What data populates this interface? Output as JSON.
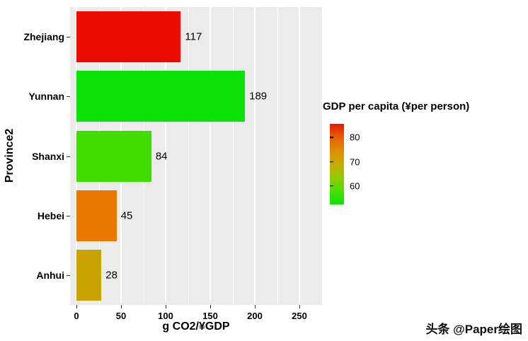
{
  "chart_data": {
    "type": "bar",
    "orientation": "horizontal",
    "xlabel": "g CO2/¥GDP",
    "ylabel": "Province2",
    "categories": [
      "Zhejiang",
      "Yunnan",
      "Shanxi",
      "Hebei",
      "Anhui"
    ],
    "values": [
      117,
      189,
      84,
      45,
      28
    ],
    "value_labels": [
      "117",
      "189",
      "84",
      "45",
      "28"
    ],
    "bar_colors": [
      "#ED0D00",
      "#0BE306",
      "#40DE00",
      "#E87800",
      "#C9A400"
    ],
    "xlim": [
      0,
      260
    ],
    "x_ticks": [
      0,
      50,
      100,
      150,
      200,
      250
    ],
    "x_minor_ticks": [
      25,
      75,
      125,
      175,
      225
    ],
    "grid": true,
    "panel_background": "#EBEBEB",
    "gridline_color": "#FFFFFF",
    "legend": {
      "position": "right",
      "title": "GDP per capita (¥per person)",
      "ticks": [
        {
          "label": "80",
          "pos": 0.17
        },
        {
          "label": "70",
          "pos": 0.47
        },
        {
          "label": "60",
          "pos": 0.77
        }
      ],
      "gradient_stops": [
        {
          "color": "#E31A00",
          "pos": 0
        },
        {
          "color": "#E86000",
          "pos": 0.17
        },
        {
          "color": "#DC9200",
          "pos": 0.35
        },
        {
          "color": "#C0B000",
          "pos": 0.52
        },
        {
          "color": "#8FCC00",
          "pos": 0.68
        },
        {
          "color": "#46DF00",
          "pos": 0.84
        },
        {
          "color": "#0BE306",
          "pos": 1
        }
      ]
    }
  },
  "watermark": {
    "text": "头条 @Paper绘图"
  }
}
